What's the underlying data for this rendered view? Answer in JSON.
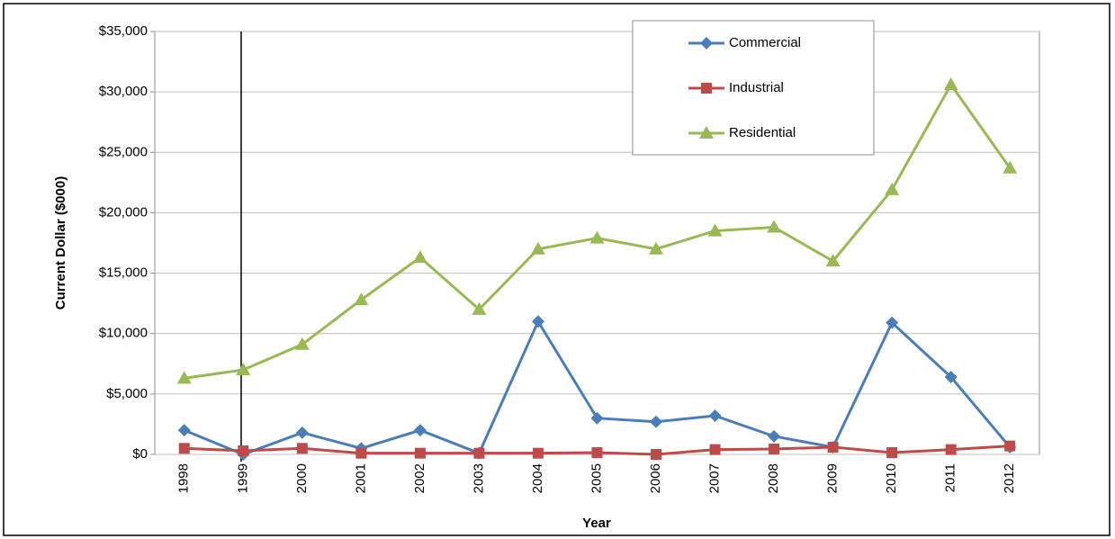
{
  "chart_data": {
    "type": "line",
    "x_label": "Year",
    "y_label": "Current Dollar ($000)",
    "categories": [
      "1998",
      "1999",
      "2000",
      "2001",
      "2002",
      "2003",
      "2004",
      "2005",
      "2006",
      "2007",
      "2008",
      "2009",
      "2010",
      "2011",
      "2012"
    ],
    "series": [
      {
        "name": "Commercial",
        "color": "#4a7ebb",
        "marker": "diamond",
        "values": [
          2000,
          0,
          1800,
          500,
          2000,
          100,
          11000,
          3000,
          2700,
          3200,
          1500,
          600,
          10900,
          6400,
          600
        ]
      },
      {
        "name": "Industrial",
        "color": "#be4b48",
        "marker": "square",
        "values": [
          500,
          300,
          500,
          100,
          100,
          100,
          100,
          150,
          0,
          400,
          450,
          600,
          150,
          400,
          700
        ]
      },
      {
        "name": "Residential",
        "color": "#98b954",
        "marker": "triangle",
        "values": [
          6300,
          7000,
          9100,
          12800,
          16300,
          12000,
          17000,
          17900,
          17000,
          18500,
          18800,
          16000,
          21900,
          30600,
          23700
        ]
      }
    ],
    "ylim": [
      0,
      35000
    ],
    "yticks": [
      {
        "value": 0,
        "label": "$0"
      },
      {
        "value": 5000,
        "label": "$5,000"
      },
      {
        "value": 10000,
        "label": "$10,000"
      },
      {
        "value": 15000,
        "label": "$15,000"
      },
      {
        "value": 20000,
        "label": "$20,000"
      },
      {
        "value": 25000,
        "label": "$25,000"
      },
      {
        "value": 30000,
        "label": "$30,000"
      },
      {
        "value": 35000,
        "label": "$35,000"
      }
    ],
    "grid": true,
    "legend": "top-right"
  }
}
